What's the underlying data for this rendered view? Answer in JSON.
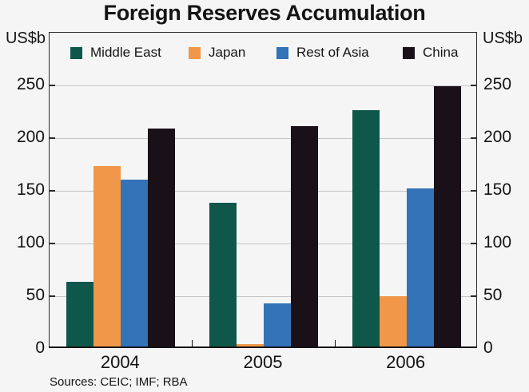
{
  "title": "Foreign Reserves Accumulation",
  "units": {
    "left": "US$b",
    "right": "US$b"
  },
  "sources": "Sources: CEIC; IMF; RBA",
  "chart_data": {
    "type": "bar",
    "title": "Foreign Reserves Accumulation",
    "categories": [
      "2004",
      "2005",
      "2006"
    ],
    "series": [
      {
        "name": "Middle East",
        "color": "#0F574A",
        "values": [
          61,
          136,
          224
        ]
      },
      {
        "name": "Japan",
        "color": "#F09749",
        "values": [
          171,
          2,
          48
        ]
      },
      {
        "name": "Rest of Asia",
        "color": "#3373B7",
        "values": [
          158,
          41,
          150
        ]
      },
      {
        "name": "China",
        "color": "#1A1118",
        "values": [
          207,
          209,
          247
        ]
      }
    ],
    "ylabel": "US$b",
    "yticks": [
      0,
      50,
      100,
      150,
      200,
      250
    ],
    "ylim": [
      0,
      300
    ],
    "grid": true,
    "grid_color": "#c3c5c7",
    "legend_position": "top-inside",
    "background_color": "#f5f5f6"
  }
}
